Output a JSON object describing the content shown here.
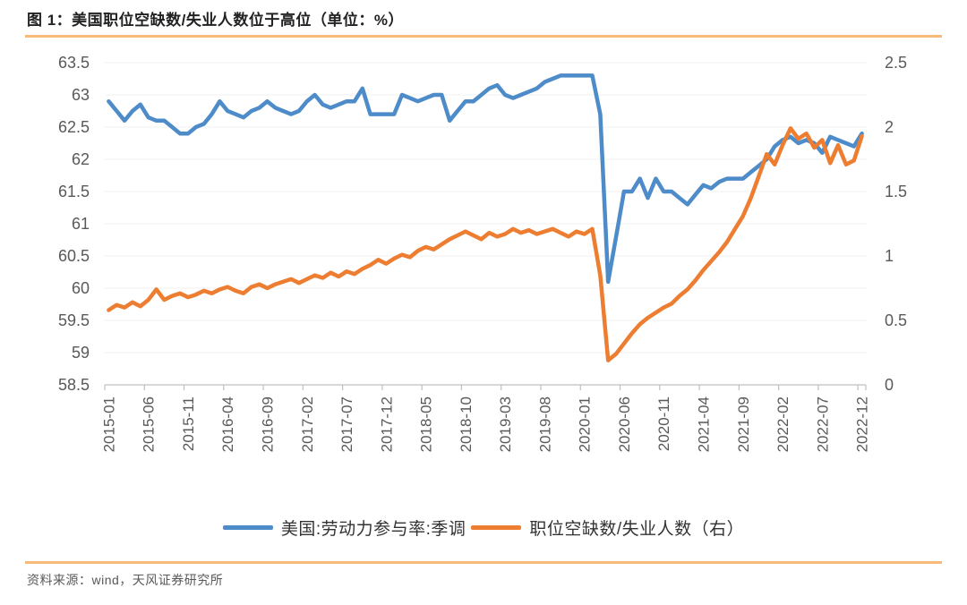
{
  "title": "图 1：美国职位空缺数/失业人数位于高位（单位：%）",
  "source": "资料来源：wind，天风证券研究所",
  "colors": {
    "blue_line": "#4d8bc9",
    "orange_line": "#ed7d31",
    "rule_orange": "#f8ba78",
    "axis_line": "#bfbfbf",
    "grid_line": "#f2f2f2",
    "axis_text": "#595959"
  },
  "legend": {
    "items": [
      {
        "label": "美国:劳动力参与率:季调",
        "color": "#4d8bc9"
      },
      {
        "label": "职位空缺数/失业人数（右）",
        "color": "#ed7d31"
      }
    ]
  },
  "chart_data": {
    "type": "line",
    "title": "美国职位空缺数/失业人数位于高位（单位：%）",
    "x_frequency": "monthly",
    "x_tick_labels": [
      "2015-01",
      "2015-06",
      "2015-11",
      "2016-04",
      "2016-09",
      "2017-02",
      "2017-07",
      "2017-12",
      "2018-05",
      "2018-10",
      "2019-03",
      "2019-08",
      "2020-01",
      "2020-06",
      "2020-11",
      "2021-04",
      "2021-09",
      "2022-02",
      "2022-07",
      "2022-12"
    ],
    "x": [
      "2015-01",
      "2015-02",
      "2015-03",
      "2015-04",
      "2015-05",
      "2015-06",
      "2015-07",
      "2015-08",
      "2015-09",
      "2015-10",
      "2015-11",
      "2015-12",
      "2016-01",
      "2016-02",
      "2016-03",
      "2016-04",
      "2016-05",
      "2016-06",
      "2016-07",
      "2016-08",
      "2016-09",
      "2016-10",
      "2016-11",
      "2016-12",
      "2017-01",
      "2017-02",
      "2017-03",
      "2017-04",
      "2017-05",
      "2017-06",
      "2017-07",
      "2017-08",
      "2017-09",
      "2017-10",
      "2017-11",
      "2017-12",
      "2018-01",
      "2018-02",
      "2018-03",
      "2018-04",
      "2018-05",
      "2018-06",
      "2018-07",
      "2018-08",
      "2018-09",
      "2018-10",
      "2018-11",
      "2018-12",
      "2019-01",
      "2019-02",
      "2019-03",
      "2019-04",
      "2019-05",
      "2019-06",
      "2019-07",
      "2019-08",
      "2019-09",
      "2019-10",
      "2019-11",
      "2019-12",
      "2020-01",
      "2020-02",
      "2020-03",
      "2020-04",
      "2020-05",
      "2020-06",
      "2020-07",
      "2020-08",
      "2020-09",
      "2020-10",
      "2020-11",
      "2020-12",
      "2021-01",
      "2021-02",
      "2021-03",
      "2021-04",
      "2021-05",
      "2021-06",
      "2021-07",
      "2021-08",
      "2021-09",
      "2021-10",
      "2021-11",
      "2021-12",
      "2022-01",
      "2022-02",
      "2022-03",
      "2022-04",
      "2022-05",
      "2022-06",
      "2022-07",
      "2022-08",
      "2022-09",
      "2022-10",
      "2022-11",
      "2022-12"
    ],
    "left_axis": {
      "ylim": [
        58.5,
        63.5
      ],
      "tick_step": 0.5,
      "ticks": [
        "63.5",
        "63",
        "62.5",
        "62",
        "61.5",
        "61",
        "60.5",
        "60",
        "59.5",
        "59",
        "58.5"
      ]
    },
    "right_axis": {
      "ylim": [
        0,
        2.5
      ],
      "tick_step": 0.5,
      "ticks": [
        "2.5",
        "2",
        "1.5",
        "1",
        "0.5",
        "0"
      ]
    },
    "grid": "faint horizontal",
    "legend_position": "bottom center",
    "series": [
      {
        "name": "美国:劳动力参与率:季调",
        "axis": "left",
        "color": "#4d8bc9",
        "values": [
          62.9,
          62.75,
          62.6,
          62.75,
          62.85,
          62.65,
          62.6,
          62.6,
          62.5,
          62.4,
          62.4,
          62.5,
          62.55,
          62.7,
          62.9,
          62.75,
          62.7,
          62.65,
          62.75,
          62.8,
          62.9,
          62.8,
          62.75,
          62.7,
          62.75,
          62.9,
          63.0,
          62.85,
          62.8,
          62.85,
          62.9,
          62.9,
          63.1,
          62.7,
          62.7,
          62.7,
          62.7,
          63.0,
          62.95,
          62.9,
          62.95,
          63.0,
          63.0,
          62.6,
          62.75,
          62.9,
          62.9,
          63.0,
          63.1,
          63.15,
          63.0,
          62.95,
          63.0,
          63.05,
          63.1,
          63.2,
          63.25,
          63.3,
          63.3,
          63.3,
          63.3,
          63.3,
          62.7,
          60.1,
          60.8,
          61.5,
          61.5,
          61.7,
          61.4,
          61.7,
          61.5,
          61.5,
          61.4,
          61.3,
          61.45,
          61.6,
          61.55,
          61.65,
          61.7,
          61.7,
          61.7,
          61.8,
          61.9,
          62.0,
          62.2,
          62.3,
          62.35,
          62.25,
          62.3,
          62.25,
          62.1,
          62.35,
          62.3,
          62.25,
          62.2,
          62.4
        ]
      },
      {
        "name": "职位空缺数/失业人数（右）",
        "axis": "right",
        "color": "#ed7d31",
        "values": [
          0.58,
          0.62,
          0.6,
          0.64,
          0.61,
          0.66,
          0.74,
          0.66,
          0.69,
          0.71,
          0.68,
          0.7,
          0.73,
          0.71,
          0.74,
          0.76,
          0.73,
          0.71,
          0.76,
          0.78,
          0.75,
          0.78,
          0.8,
          0.82,
          0.79,
          0.82,
          0.85,
          0.83,
          0.87,
          0.84,
          0.88,
          0.86,
          0.9,
          0.93,
          0.97,
          0.94,
          0.98,
          1.01,
          0.99,
          1.04,
          1.07,
          1.05,
          1.09,
          1.13,
          1.16,
          1.19,
          1.16,
          1.13,
          1.18,
          1.15,
          1.17,
          1.21,
          1.18,
          1.2,
          1.17,
          1.19,
          1.21,
          1.18,
          1.15,
          1.19,
          1.17,
          1.21,
          0.85,
          0.19,
          0.24,
          0.32,
          0.4,
          0.47,
          0.52,
          0.56,
          0.6,
          0.63,
          0.69,
          0.74,
          0.81,
          0.89,
          0.96,
          1.03,
          1.11,
          1.21,
          1.31,
          1.45,
          1.62,
          1.79,
          1.71,
          1.86,
          1.99,
          1.91,
          1.95,
          1.84,
          1.9,
          1.72,
          1.86,
          1.71,
          1.74,
          1.93
        ]
      }
    ]
  }
}
